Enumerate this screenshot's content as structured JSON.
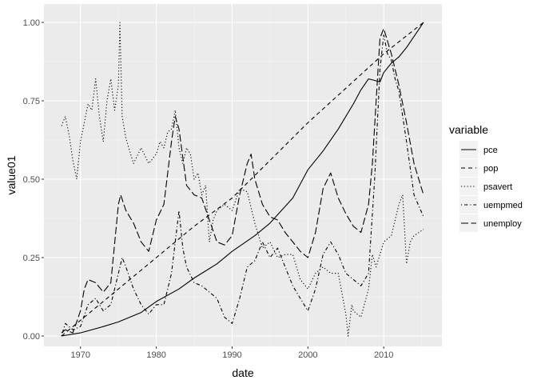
{
  "chart_data": {
    "type": "line",
    "xlabel": "date",
    "ylabel": "value01",
    "xlim": [
      1967.5,
      2015.25
    ],
    "ylim": [
      0,
      1
    ],
    "x_ticks": [
      1970,
      1980,
      1990,
      2000,
      2010
    ],
    "x_tick_labels": [
      "1970",
      "1980",
      "1990",
      "2000",
      "2010"
    ],
    "y_ticks": [
      0,
      0.25,
      0.5,
      0.75,
      1
    ],
    "y_tick_labels": [
      "0.00",
      "0.25",
      "0.50",
      "0.75",
      "1.00"
    ],
    "grid": true,
    "legend_title": "variable",
    "legend_position": "right",
    "colors": {
      "panel": "#ebebeb",
      "grid_major": "#ffffff",
      "grid_minor": "#f5f5f5",
      "line": "#000000"
    },
    "series": [
      {
        "name": "pce",
        "linetype": "solid",
        "x": [
          1967.5,
          1970,
          1973,
          1975,
          1978,
          1980,
          1983,
          1985,
          1988,
          1990,
          1993,
          1995,
          1998,
          2000,
          2002,
          2004,
          2006,
          2007,
          2008,
          2008.8,
          2009.5,
          2010,
          2011,
          2012,
          2013,
          2014,
          2015.25
        ],
        "y": [
          0.0,
          0.01,
          0.03,
          0.045,
          0.075,
          0.11,
          0.15,
          0.185,
          0.23,
          0.27,
          0.32,
          0.36,
          0.44,
          0.53,
          0.59,
          0.66,
          0.74,
          0.785,
          0.82,
          0.815,
          0.81,
          0.84,
          0.87,
          0.89,
          0.92,
          0.955,
          1.0
        ]
      },
      {
        "name": "pop",
        "linetype": "dashed",
        "x": [
          1967.5,
          1970,
          1975,
          1980,
          1985,
          1990,
          1995,
          2000,
          2005,
          2010,
          2015.25
        ],
        "y": [
          0.0,
          0.05,
          0.15,
          0.25,
          0.35,
          0.44,
          0.56,
          0.68,
          0.79,
          0.9,
          1.0
        ]
      },
      {
        "name": "psavert",
        "linetype": "dotted",
        "x": [
          1967.5,
          1968,
          1968.5,
          1969,
          1969.5,
          1970,
          1970.5,
          1971,
          1971.5,
          1972,
          1972.5,
          1973,
          1973.5,
          1974,
          1974.5,
          1975,
          1975.2,
          1975.5,
          1976,
          1977,
          1978,
          1979,
          1980,
          1980.5,
          1981,
          1981.5,
          1982,
          1982.5,
          1983,
          1983.5,
          1984,
          1984.5,
          1985,
          1985.5,
          1986,
          1986.5,
          1987,
          1987.5,
          1988,
          1989,
          1990,
          1991,
          1992,
          1993,
          1994,
          1995,
          1996,
          1997,
          1998,
          1999,
          2000,
          2001,
          2002,
          2003,
          2004,
          2005,
          2005.3,
          2005.8,
          2006,
          2007,
          2008,
          2008.5,
          2009,
          2010,
          2011,
          2012,
          2012.5,
          2013,
          2013.5,
          2014,
          2015.25
        ],
        "y": [
          0.67,
          0.7,
          0.64,
          0.56,
          0.5,
          0.62,
          0.68,
          0.74,
          0.72,
          0.82,
          0.7,
          0.62,
          0.75,
          0.82,
          0.72,
          0.8,
          1.0,
          0.7,
          0.63,
          0.55,
          0.6,
          0.55,
          0.58,
          0.62,
          0.6,
          0.65,
          0.66,
          0.72,
          0.6,
          0.55,
          0.6,
          0.58,
          0.5,
          0.52,
          0.45,
          0.48,
          0.3,
          0.37,
          0.4,
          0.42,
          0.4,
          0.47,
          0.46,
          0.36,
          0.28,
          0.3,
          0.25,
          0.26,
          0.26,
          0.18,
          0.15,
          0.2,
          0.22,
          0.2,
          0.2,
          0.07,
          0.0,
          0.1,
          0.08,
          0.06,
          0.15,
          0.26,
          0.22,
          0.3,
          0.32,
          0.42,
          0.45,
          0.23,
          0.3,
          0.32,
          0.34
        ]
      },
      {
        "name": "uempmed",
        "linetype": "dotdash",
        "x": [
          1967.5,
          1968,
          1969,
          1970,
          1971,
          1972,
          1973,
          1974,
          1975,
          1975.5,
          1976,
          1977,
          1978,
          1979,
          1980,
          1981,
          1982,
          1983,
          1983.5,
          1984,
          1985,
          1986,
          1987,
          1988,
          1989,
          1990,
          1991,
          1992,
          1993,
          1994,
          1995,
          1996,
          1997,
          1998,
          1999,
          2000,
          2001,
          2002,
          2003,
          2004,
          2005,
          2006,
          2007,
          2008,
          2008.8,
          2009.5,
          2010,
          2010.5,
          2011,
          2011.5,
          2012,
          2013,
          2014,
          2015.25
        ],
        "y": [
          0.0,
          0.04,
          0.02,
          0.03,
          0.1,
          0.12,
          0.08,
          0.1,
          0.2,
          0.25,
          0.22,
          0.15,
          0.1,
          0.07,
          0.1,
          0.1,
          0.2,
          0.4,
          0.28,
          0.22,
          0.17,
          0.16,
          0.14,
          0.12,
          0.06,
          0.04,
          0.12,
          0.22,
          0.24,
          0.3,
          0.25,
          0.28,
          0.22,
          0.16,
          0.12,
          0.08,
          0.15,
          0.26,
          0.3,
          0.26,
          0.2,
          0.18,
          0.16,
          0.2,
          0.5,
          0.85,
          0.96,
          0.9,
          0.88,
          0.82,
          0.78,
          0.62,
          0.45,
          0.38
        ]
      },
      {
        "name": "unemploy",
        "linetype": "longdash",
        "x": [
          1967.5,
          1968,
          1969,
          1970,
          1970.5,
          1971,
          1972,
          1973,
          1974,
          1975,
          1975.3,
          1976,
          1977,
          1978,
          1979,
          1980,
          1981,
          1982,
          1982.5,
          1983,
          1984,
          1985,
          1986,
          1987,
          1988,
          1989,
          1990,
          1991,
          1992,
          1992.5,
          1993,
          1994,
          1995,
          1996,
          1997,
          1998,
          1999,
          2000,
          2001,
          2002,
          2003,
          2004,
          2005,
          2006,
          2007,
          2008,
          2008.5,
          2009,
          2009.5,
          2010,
          2011,
          2012,
          2013,
          2014,
          2015.25
        ],
        "y": [
          0.01,
          0.02,
          0.01,
          0.08,
          0.15,
          0.18,
          0.17,
          0.14,
          0.17,
          0.42,
          0.45,
          0.4,
          0.36,
          0.3,
          0.27,
          0.37,
          0.42,
          0.62,
          0.7,
          0.66,
          0.48,
          0.45,
          0.44,
          0.37,
          0.3,
          0.29,
          0.32,
          0.45,
          0.55,
          0.58,
          0.5,
          0.42,
          0.38,
          0.37,
          0.33,
          0.3,
          0.27,
          0.25,
          0.33,
          0.47,
          0.52,
          0.44,
          0.39,
          0.35,
          0.33,
          0.42,
          0.55,
          0.75,
          0.95,
          0.98,
          0.9,
          0.8,
          0.68,
          0.55,
          0.45
        ]
      }
    ]
  }
}
